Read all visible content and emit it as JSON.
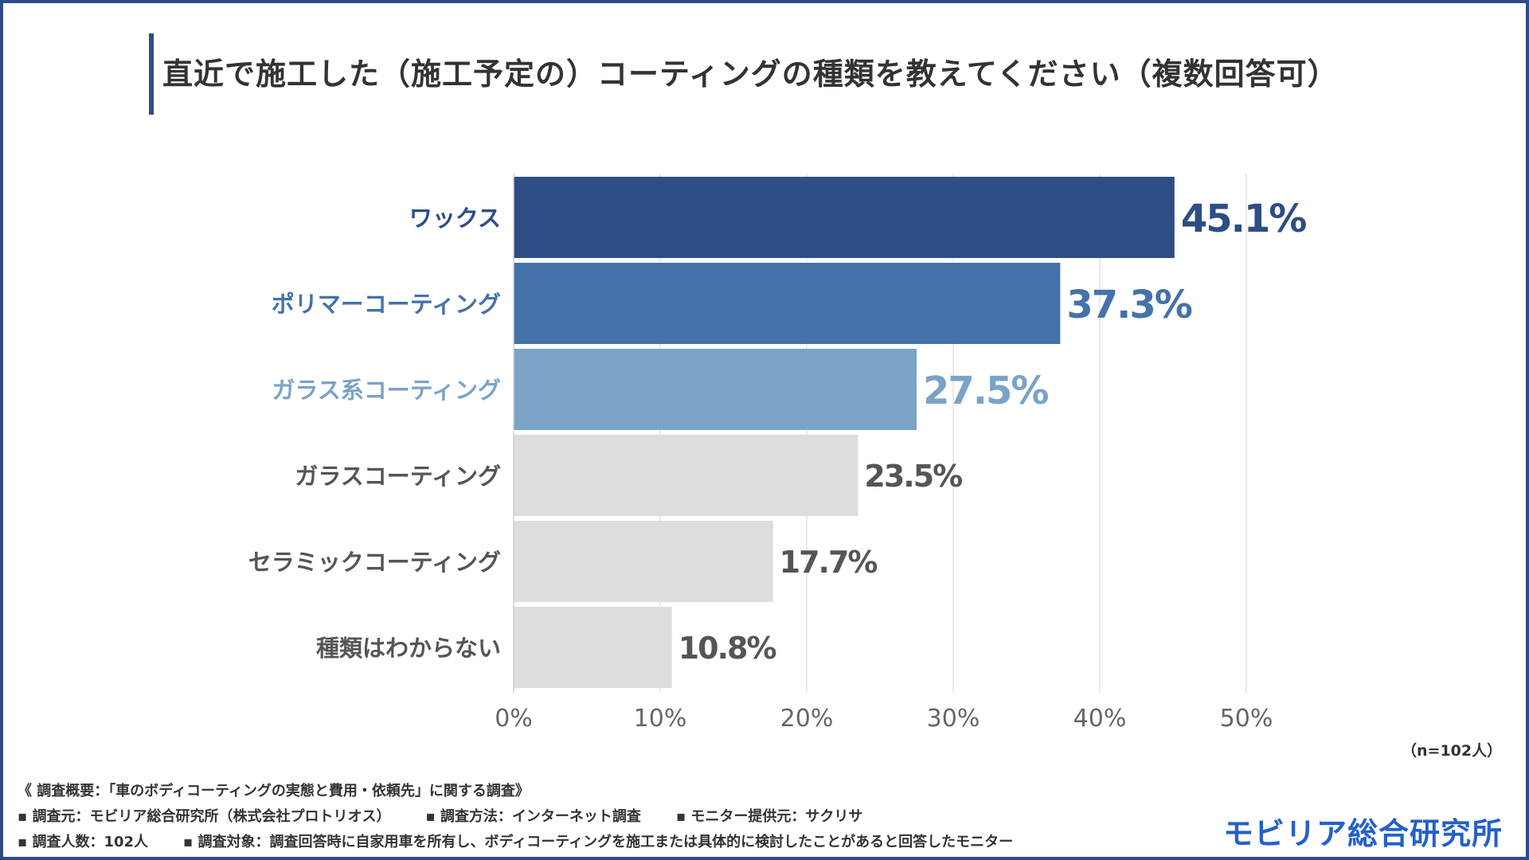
{
  "title": "直近で施工した（施工予定の）コーティングの種類を教えてください（複数回答可）",
  "sample_note": "（n=102人）",
  "footer": {
    "overview": "《 調査概要：「車のボディコーティングの実態と費用・依頼先」に関する調査》",
    "source": "▪ 調査元：モビリア総合研究所（株式会社プロトリオス）",
    "method": "▪ 調査方法：インターネット調査",
    "panel": "▪ モニター提供元：サクリサ",
    "count": "▪ 調査人数：102人",
    "target": "▪ 調査対象：調査回答時に自家用車を所有し、ボディコーティングを施工または具体的に検討したことがあると回答したモニター"
  },
  "brand": "モビリア総合研究所",
  "colors": {
    "frame": "#2e4d85",
    "highlight": [
      "#2e4d85",
      "#4472aa",
      "#7aa3c8"
    ],
    "neutral_bar": "#dddddd",
    "neutral_text": "#555555",
    "brand": "#2460c8"
  },
  "chart_data": {
    "type": "bar",
    "orientation": "horizontal",
    "categories": [
      "ワックス",
      "ポリマーコーティング",
      "ガラス系コーティング",
      "ガラスコーティング",
      "セラミックコーティング",
      "種類はわからない"
    ],
    "values": [
      45.1,
      37.3,
      27.5,
      23.5,
      17.7,
      10.8
    ],
    "value_labels": [
      "45.1%",
      "37.3%",
      "27.5%",
      "23.5%",
      "17.7%",
      "10.8%"
    ],
    "xlim": [
      0,
      50
    ],
    "xticks": [
      "0%",
      "10%",
      "20%",
      "30%",
      "40%",
      "50%"
    ],
    "grid": true,
    "title": "",
    "xlabel": "",
    "ylabel": ""
  }
}
